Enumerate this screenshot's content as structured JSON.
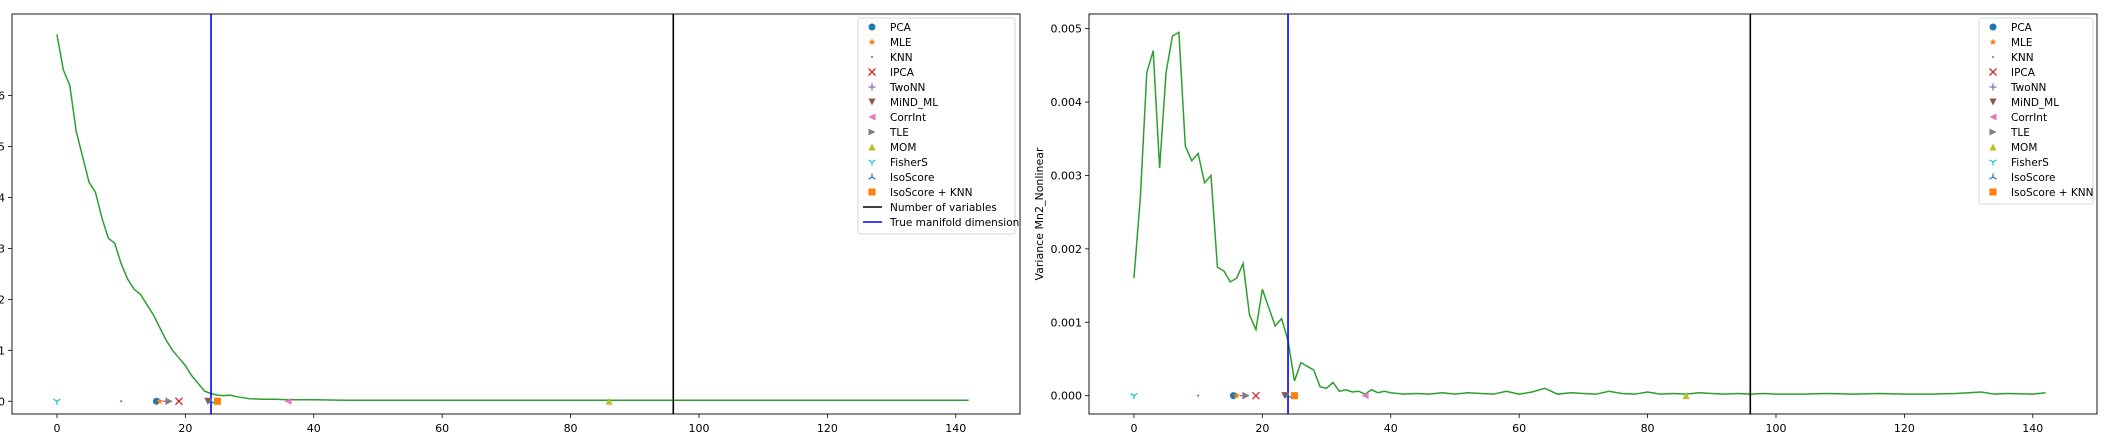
{
  "chart_data": [
    {
      "type": "line",
      "title": "",
      "xlabel": "",
      "ylabel": "",
      "xlim": [
        -7,
        150
      ],
      "ylim": [
        -0.00025,
        0.0076
      ],
      "xticks": [
        0,
        20,
        40,
        60,
        80,
        100,
        120,
        140
      ],
      "yticks": [
        {
          "value": 0.0,
          "label": "0"
        },
        {
          "value": 0.001,
          "label": "1"
        },
        {
          "value": 0.002,
          "label": "2"
        },
        {
          "value": 0.003,
          "label": "3"
        },
        {
          "value": 0.004,
          "label": "4"
        },
        {
          "value": 0.005,
          "label": "5"
        },
        {
          "value": 0.006,
          "label": "6"
        }
      ],
      "series": [
        {
          "color": "#2ca02c",
          "x": [
            0,
            1,
            2,
            3,
            4,
            5,
            6,
            7,
            8,
            9,
            10,
            11,
            12,
            13,
            14,
            15,
            16,
            17,
            18,
            19,
            20,
            21,
            22,
            23,
            24,
            25,
            26,
            27,
            28,
            29,
            30,
            32,
            34,
            36,
            38,
            40,
            45,
            50,
            55,
            60,
            65,
            70,
            75,
            80,
            85,
            90,
            95,
            100,
            105,
            110,
            115,
            120,
            125,
            130,
            135,
            140,
            142
          ],
          "y": [
            0.0072,
            0.0065,
            0.0062,
            0.0053,
            0.0048,
            0.0043,
            0.0041,
            0.0036,
            0.0032,
            0.0031,
            0.0027,
            0.0024,
            0.0022,
            0.0021,
            0.0019,
            0.0017,
            0.00145,
            0.0012,
            0.001,
            0.00085,
            0.0007,
            0.0005,
            0.00035,
            0.0002,
            0.00015,
            0.00012,
            0.00011,
            0.00012,
            9e-05,
            7e-05,
            5e-05,
            4e-05,
            4e-05,
            3e-05,
            3e-05,
            3e-05,
            2e-05,
            2e-05,
            2e-05,
            2e-05,
            2e-05,
            2e-05,
            2e-05,
            2e-05,
            2e-05,
            2e-05,
            2e-05,
            2e-05,
            2e-05,
            2e-05,
            2e-05,
            2e-05,
            2e-05,
            2e-05,
            2e-05,
            2e-05,
            2e-05
          ]
        }
      ],
      "markers": [
        {
          "method": "PCA",
          "x": 15.5,
          "y": 0
        },
        {
          "method": "MLE",
          "x": 16.0,
          "y": 0
        },
        {
          "method": "KNN",
          "x": 10.0,
          "y": 0
        },
        {
          "method": "IPCA",
          "x": 19.0,
          "y": 0
        },
        {
          "method": "TwoNN",
          "x": 17.0,
          "y": 0
        },
        {
          "method": "MiND_ML",
          "x": 23.5,
          "y": 0
        },
        {
          "method": "CorrInt",
          "x": 36.0,
          "y": 0
        },
        {
          "method": "TLE",
          "x": 17.5,
          "y": 0
        },
        {
          "method": "MOM",
          "x": 86.0,
          "y": 0
        },
        {
          "method": "FisherS",
          "x": 0.0,
          "y": 0
        },
        {
          "method": "IsoScore",
          "x": 24.0,
          "y": 0
        },
        {
          "method": "IsoScore + KNN",
          "x": 25.0,
          "y": 0
        }
      ],
      "vlines": [
        {
          "label": "Number of variables",
          "x": 96,
          "color": "#000000"
        },
        {
          "label": "True manifold dimension",
          "x": 24,
          "color": "#0000ff"
        }
      ],
      "legend": {
        "placement": "top-right",
        "entries": [
          "PCA",
          "MLE",
          "KNN",
          "IPCA",
          "TwoNN",
          "MiND_ML",
          "CorrInt",
          "TLE",
          "MOM",
          "FisherS",
          "IsoScore",
          "IsoScore + KNN",
          "Number of variables",
          "True manifold dimension"
        ]
      }
    },
    {
      "type": "line",
      "title": "",
      "xlabel": "",
      "ylabel": "Variance Mn2_Nonlinear",
      "xlim": [
        -7,
        150
      ],
      "ylim": [
        -0.00025,
        0.0052
      ],
      "xticks": [
        0,
        20,
        40,
        60,
        80,
        100,
        120,
        140
      ],
      "yticks": [
        {
          "value": 0.0,
          "label": "0.000"
        },
        {
          "value": 0.001,
          "label": "0.001"
        },
        {
          "value": 0.002,
          "label": "0.002"
        },
        {
          "value": 0.003,
          "label": "0.003"
        },
        {
          "value": 0.004,
          "label": "0.004"
        },
        {
          "value": 0.005,
          "label": "0.005"
        }
      ],
      "series": [
        {
          "color": "#2ca02c",
          "x": [
            0,
            1,
            2,
            3,
            4,
            5,
            6,
            7,
            8,
            9,
            10,
            11,
            12,
            13,
            14,
            15,
            16,
            17,
            18,
            19,
            20,
            21,
            22,
            23,
            24,
            25,
            26,
            27,
            28,
            29,
            30,
            31,
            32,
            33,
            34,
            35,
            36,
            37,
            38,
            39,
            40,
            42,
            44,
            46,
            48,
            50,
            52,
            54,
            56,
            58,
            60,
            62,
            64,
            66,
            68,
            70,
            72,
            74,
            76,
            78,
            80,
            82,
            84,
            86,
            88,
            90,
            92,
            94,
            96,
            98,
            100,
            104,
            108,
            112,
            116,
            120,
            124,
            128,
            132,
            134,
            136,
            140,
            142
          ],
          "y": [
            0.0016,
            0.0027,
            0.0044,
            0.0047,
            0.0031,
            0.0044,
            0.0049,
            0.00495,
            0.0034,
            0.0032,
            0.0033,
            0.0029,
            0.003,
            0.00175,
            0.0017,
            0.00155,
            0.0016,
            0.0018,
            0.0011,
            0.0009,
            0.00145,
            0.0012,
            0.00095,
            0.00105,
            0.00075,
            0.0002,
            0.00045,
            0.0004,
            0.00035,
            0.00012,
            0.0001,
            0.00018,
            6e-05,
            8e-05,
            5e-05,
            6e-05,
            2e-05,
            8e-05,
            4e-05,
            6e-05,
            4e-05,
            2e-05,
            3e-05,
            2e-05,
            4e-05,
            2e-05,
            4e-05,
            3e-05,
            2e-05,
            6e-05,
            2e-05,
            5e-05,
            0.0001,
            2e-05,
            4e-05,
            3e-05,
            2e-05,
            6e-05,
            3e-05,
            2e-05,
            5e-05,
            2e-05,
            3e-05,
            2e-05,
            4e-05,
            3e-05,
            2e-05,
            3e-05,
            2e-05,
            3e-05,
            2e-05,
            2e-05,
            3e-05,
            2e-05,
            3e-05,
            2e-05,
            2e-05,
            3e-05,
            5e-05,
            2e-05,
            3e-05,
            2e-05,
            4e-05
          ]
        }
      ],
      "markers": [
        {
          "method": "PCA",
          "x": 15.5,
          "y": 0
        },
        {
          "method": "MLE",
          "x": 16.0,
          "y": 0
        },
        {
          "method": "KNN",
          "x": 10.0,
          "y": 0
        },
        {
          "method": "IPCA",
          "x": 19.0,
          "y": 0
        },
        {
          "method": "TwoNN",
          "x": 17.0,
          "y": 0
        },
        {
          "method": "MiND_ML",
          "x": 23.5,
          "y": 0
        },
        {
          "method": "CorrInt",
          "x": 36.0,
          "y": 0
        },
        {
          "method": "TLE",
          "x": 17.5,
          "y": 0
        },
        {
          "method": "MOM",
          "x": 86.0,
          "y": 0
        },
        {
          "method": "FisherS",
          "x": 0.0,
          "y": 0
        },
        {
          "method": "IsoScore",
          "x": 24.0,
          "y": 0
        },
        {
          "method": "IsoScore + KNN",
          "x": 25.0,
          "y": 0
        }
      ],
      "vlines": [
        {
          "label": "",
          "x": 96,
          "color": "#000000"
        },
        {
          "label": "",
          "x": 24,
          "color": "#0000ff"
        }
      ],
      "legend": {
        "placement": "top-right",
        "entries": [
          "PCA",
          "MLE",
          "KNN",
          "IPCA",
          "TwoNN",
          "MiND_ML",
          "CorrInt",
          "TLE",
          "MOM",
          "FisherS",
          "IsoScore",
          "IsoScore + KNN"
        ]
      }
    }
  ],
  "method_styles": {
    "PCA": {
      "marker": "circle",
      "color": "#1f77b4"
    },
    "MLE": {
      "marker": "star",
      "color": "#ff7f0e"
    },
    "KNN": {
      "marker": "point",
      "color": "#2ca02c"
    },
    "IPCA": {
      "marker": "x",
      "color": "#d62728"
    },
    "TwoNN": {
      "marker": "plus",
      "color": "#9467bd"
    },
    "MiND_ML": {
      "marker": "triangle-down",
      "color": "#8c564b"
    },
    "CorrInt": {
      "marker": "triangle-left",
      "color": "#e377c2"
    },
    "TLE": {
      "marker": "triangle-right",
      "color": "#7f7f7f"
    },
    "MOM": {
      "marker": "triangle-up",
      "color": "#bcbd22"
    },
    "FisherS": {
      "marker": "tri-down",
      "color": "#17becf"
    },
    "IsoScore": {
      "marker": "tri-up",
      "color": "#1f77b4"
    },
    "IsoScore + KNN": {
      "marker": "square",
      "color": "#ff7f0e"
    }
  }
}
